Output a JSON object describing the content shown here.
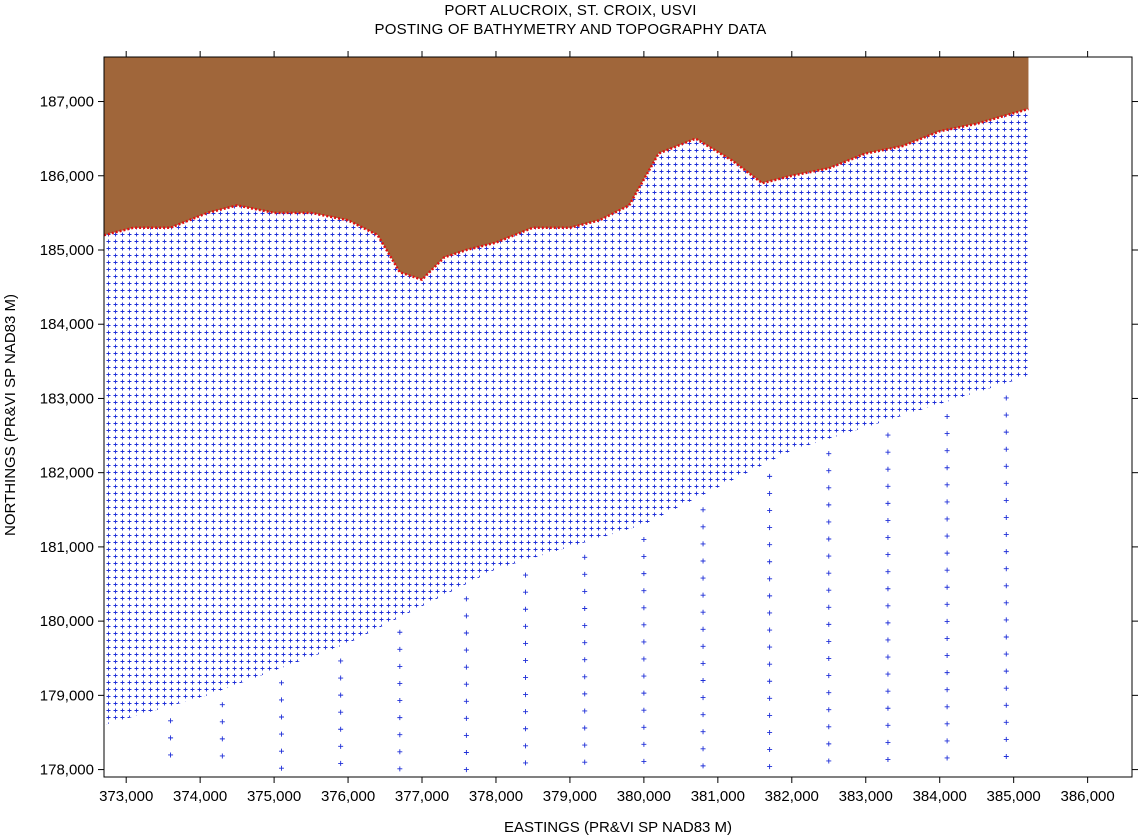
{
  "title_line1": "PORT ALUCROIX, ST. CROIX, USVI",
  "title_line2": "POSTING OF BATHYMETRY AND TOPOGRAPHY DATA",
  "chart_data": {
    "type": "scatter",
    "xlabel": "EASTINGS (PR&VI SP NAD83 M)",
    "ylabel": "NORTHINGS (PR&VI SP NAD83 M)",
    "x_ticks": [
      "373,000",
      "374,000",
      "375,000",
      "376,000",
      "377,000",
      "378,000",
      "379,000",
      "380,000",
      "381,000",
      "382,000",
      "383,000",
      "384,000",
      "385,000",
      "386,000"
    ],
    "y_ticks": [
      "178,000",
      "179,000",
      "180,000",
      "181,000",
      "182,000",
      "183,000",
      "184,000",
      "185,000",
      "186,000",
      "187,000"
    ],
    "xlim": [
      372700,
      386600
    ],
    "ylim": [
      177900,
      187600
    ],
    "colors": {
      "land": "#a0663a",
      "bathymetry_points": "#1f2fd8",
      "topography_points": "#e01010"
    },
    "coastline_approx": [
      [
        372700,
        185200
      ],
      [
        373100,
        185300
      ],
      [
        373600,
        185300
      ],
      [
        374100,
        185500
      ],
      [
        374500,
        185600
      ],
      [
        375000,
        185500
      ],
      [
        375500,
        185500
      ],
      [
        376000,
        185400
      ],
      [
        376400,
        185200
      ],
      [
        376700,
        184700
      ],
      [
        377000,
        184600
      ],
      [
        377300,
        184900
      ],
      [
        377600,
        185000
      ],
      [
        378000,
        185100
      ],
      [
        378500,
        185300
      ],
      [
        379000,
        185300
      ],
      [
        379400,
        185400
      ],
      [
        379800,
        185600
      ],
      [
        380200,
        186300
      ],
      [
        380700,
        186500
      ],
      [
        381200,
        186200
      ],
      [
        381600,
        185900
      ],
      [
        382000,
        186000
      ],
      [
        382500,
        186100
      ],
      [
        383000,
        186300
      ],
      [
        383500,
        186400
      ],
      [
        384000,
        186600
      ],
      [
        384500,
        186700
      ],
      [
        385200,
        186900
      ]
    ],
    "survey_bounds": {
      "nearshore_east_limit": 385200,
      "nearshore_south_west": [
        [
          372700,
          178600
        ],
        [
          374100,
          179000
        ],
        [
          376000,
          179700
        ],
        [
          378000,
          180700
        ],
        [
          380000,
          181300
        ],
        [
          382000,
          182300
        ],
        [
          385200,
          183300
        ]
      ],
      "offshore_lines_x": [
        373600,
        374300,
        375100,
        375900,
        376700,
        377600,
        378400,
        379200,
        380000,
        380800,
        381700,
        382500,
        383300,
        384100,
        384900
      ],
      "offshore_south_y": 178000
    }
  }
}
